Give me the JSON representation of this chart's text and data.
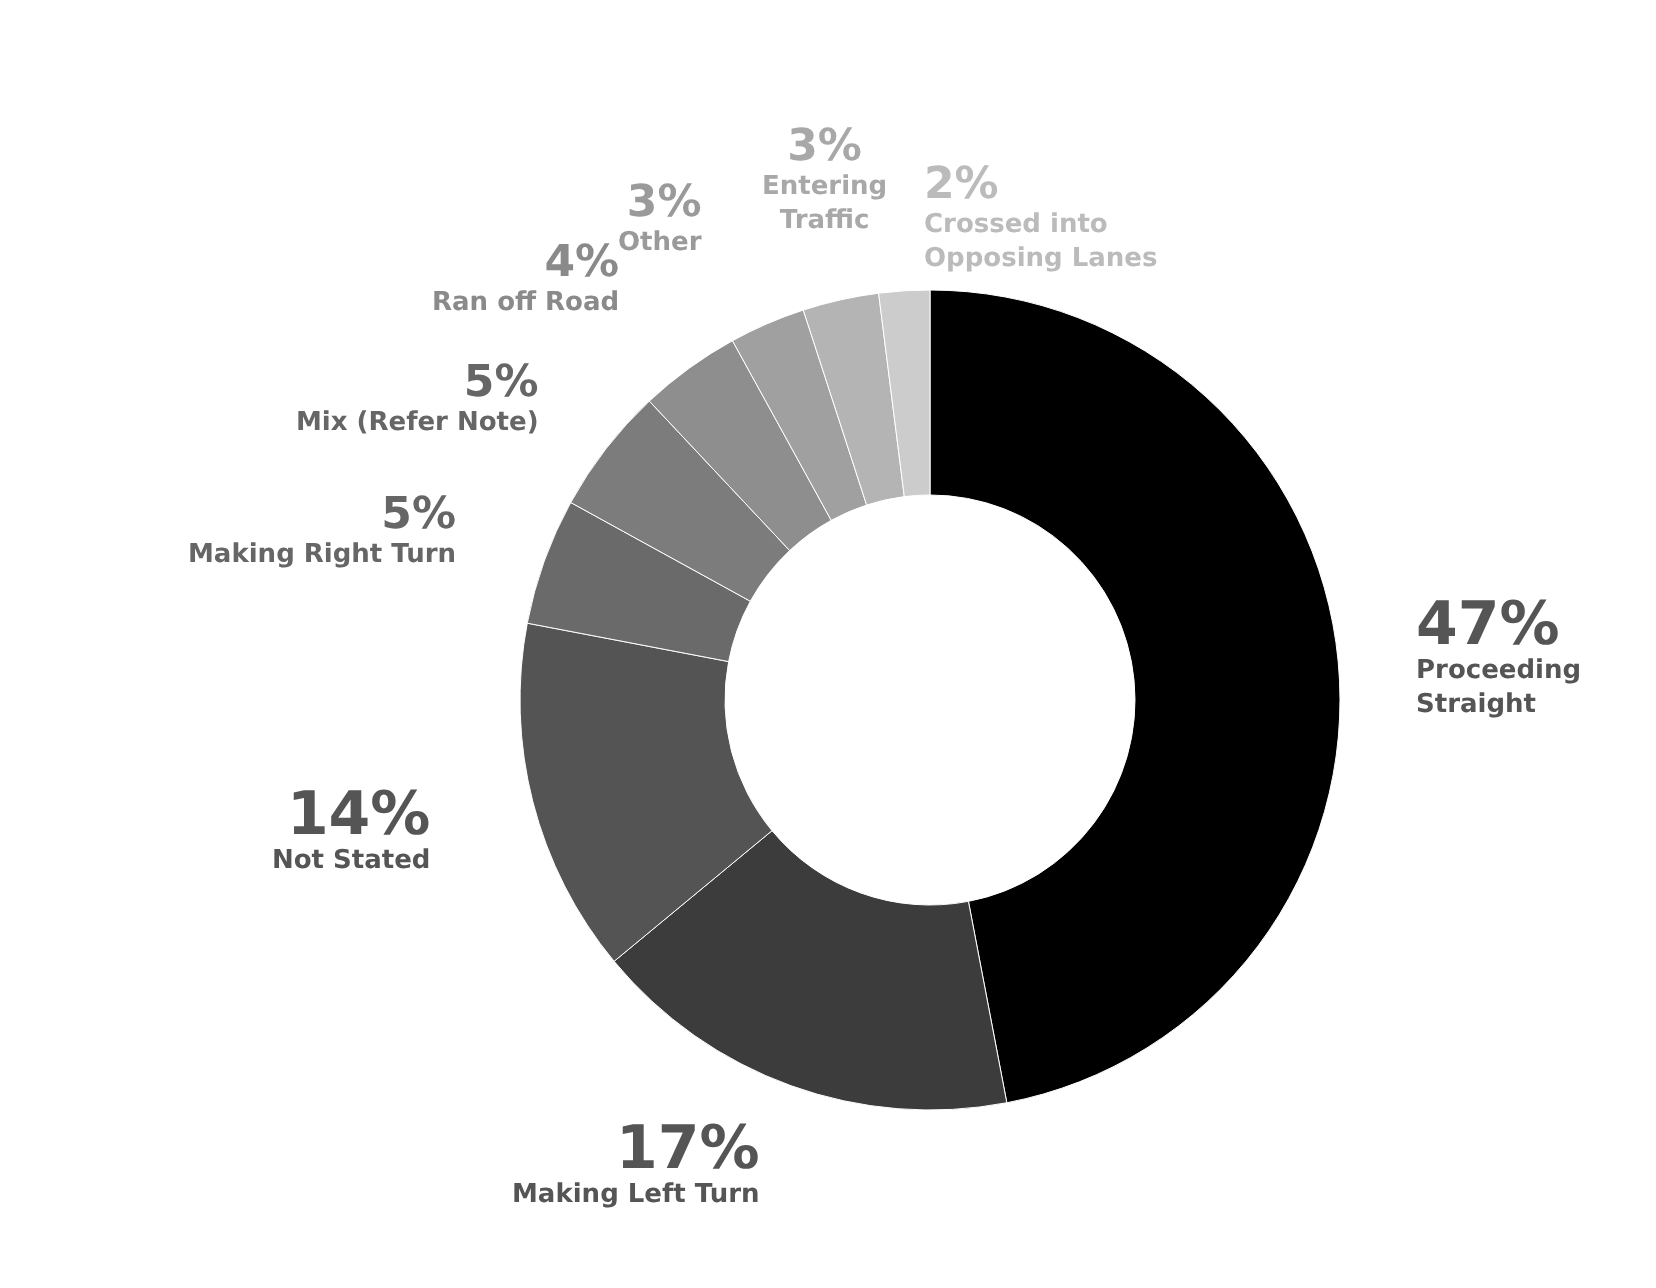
{
  "chart_data": {
    "type": "donut",
    "categories": [
      "Proceeding Straight",
      "Making Left Turn",
      "Not Stated",
      "Making Right Turn",
      "Mix (Refer Note)",
      "Ran off Road",
      "Other",
      "Entering Traffic",
      "Crossed into Opposing Lanes"
    ],
    "values": [
      47,
      17,
      14,
      5,
      5,
      4,
      3,
      3,
      2
    ],
    "value_labels": [
      "47%",
      "17%",
      "14%",
      "5%",
      "5%",
      "4%",
      "3%",
      "3%",
      "2%"
    ],
    "colors": [
      "#000000",
      "#3c3c3c",
      "#545454",
      "#6a6a6a",
      "#7c7c7c",
      "#8e8e8e",
      "#a0a0a0",
      "#b4b4b4",
      "#cccccc"
    ],
    "legend": false
  }
}
